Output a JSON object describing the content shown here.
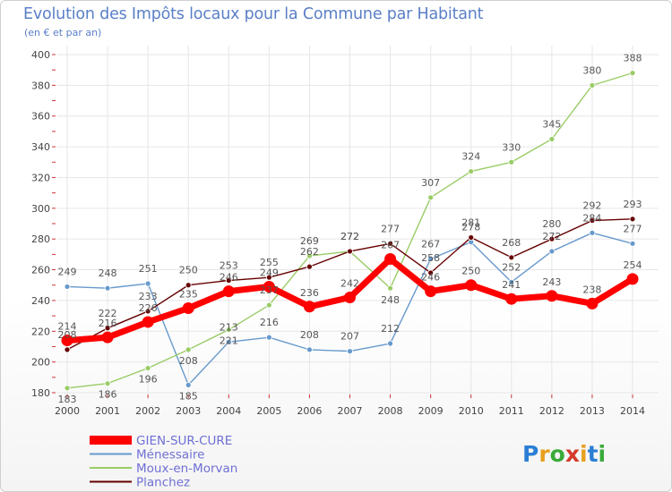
{
  "chart_data": {
    "type": "line",
    "title": "Evolution des Impôts locaux pour la Commune par Habitant",
    "subtitle": "(en € et par an)",
    "categories": [
      "2000",
      "2001",
      "2002",
      "2003",
      "2004",
      "2005",
      "2006",
      "2007",
      "2008",
      "2009",
      "2010",
      "2011",
      "2012",
      "2013",
      "2014"
    ],
    "ylim": [
      180,
      400
    ],
    "yticks": [
      180,
      200,
      220,
      240,
      260,
      280,
      300,
      320,
      340,
      360,
      380,
      400
    ],
    "grid": true,
    "legend_position": "bottom-left",
    "series": [
      {
        "name": "GIEN-SUR-CURE",
        "color": "#ff0000",
        "values": [
          214,
          216,
          226,
          235,
          246,
          249,
          236,
          242,
          267,
          246,
          250,
          241,
          243,
          238,
          254
        ]
      },
      {
        "name": "Ménessaire",
        "color": "#6699cc",
        "values": [
          249,
          248,
          251,
          185,
          213,
          216,
          208,
          207,
          212,
          267,
          278,
          252,
          272,
          284,
          277
        ]
      },
      {
        "name": "Moux-en-Morvan",
        "color": "#99cc66",
        "values": [
          183,
          186,
          196,
          208,
          221,
          237,
          269,
          272,
          248,
          307,
          324,
          330,
          345,
          380,
          388
        ]
      },
      {
        "name": "Planchez",
        "color": "#660000",
        "values": [
          208,
          222,
          233,
          250,
          253,
          255,
          262,
          272,
          277,
          258,
          281,
          268,
          280,
          292,
          293
        ]
      }
    ]
  },
  "logo": {
    "text": "Proxiti"
  }
}
